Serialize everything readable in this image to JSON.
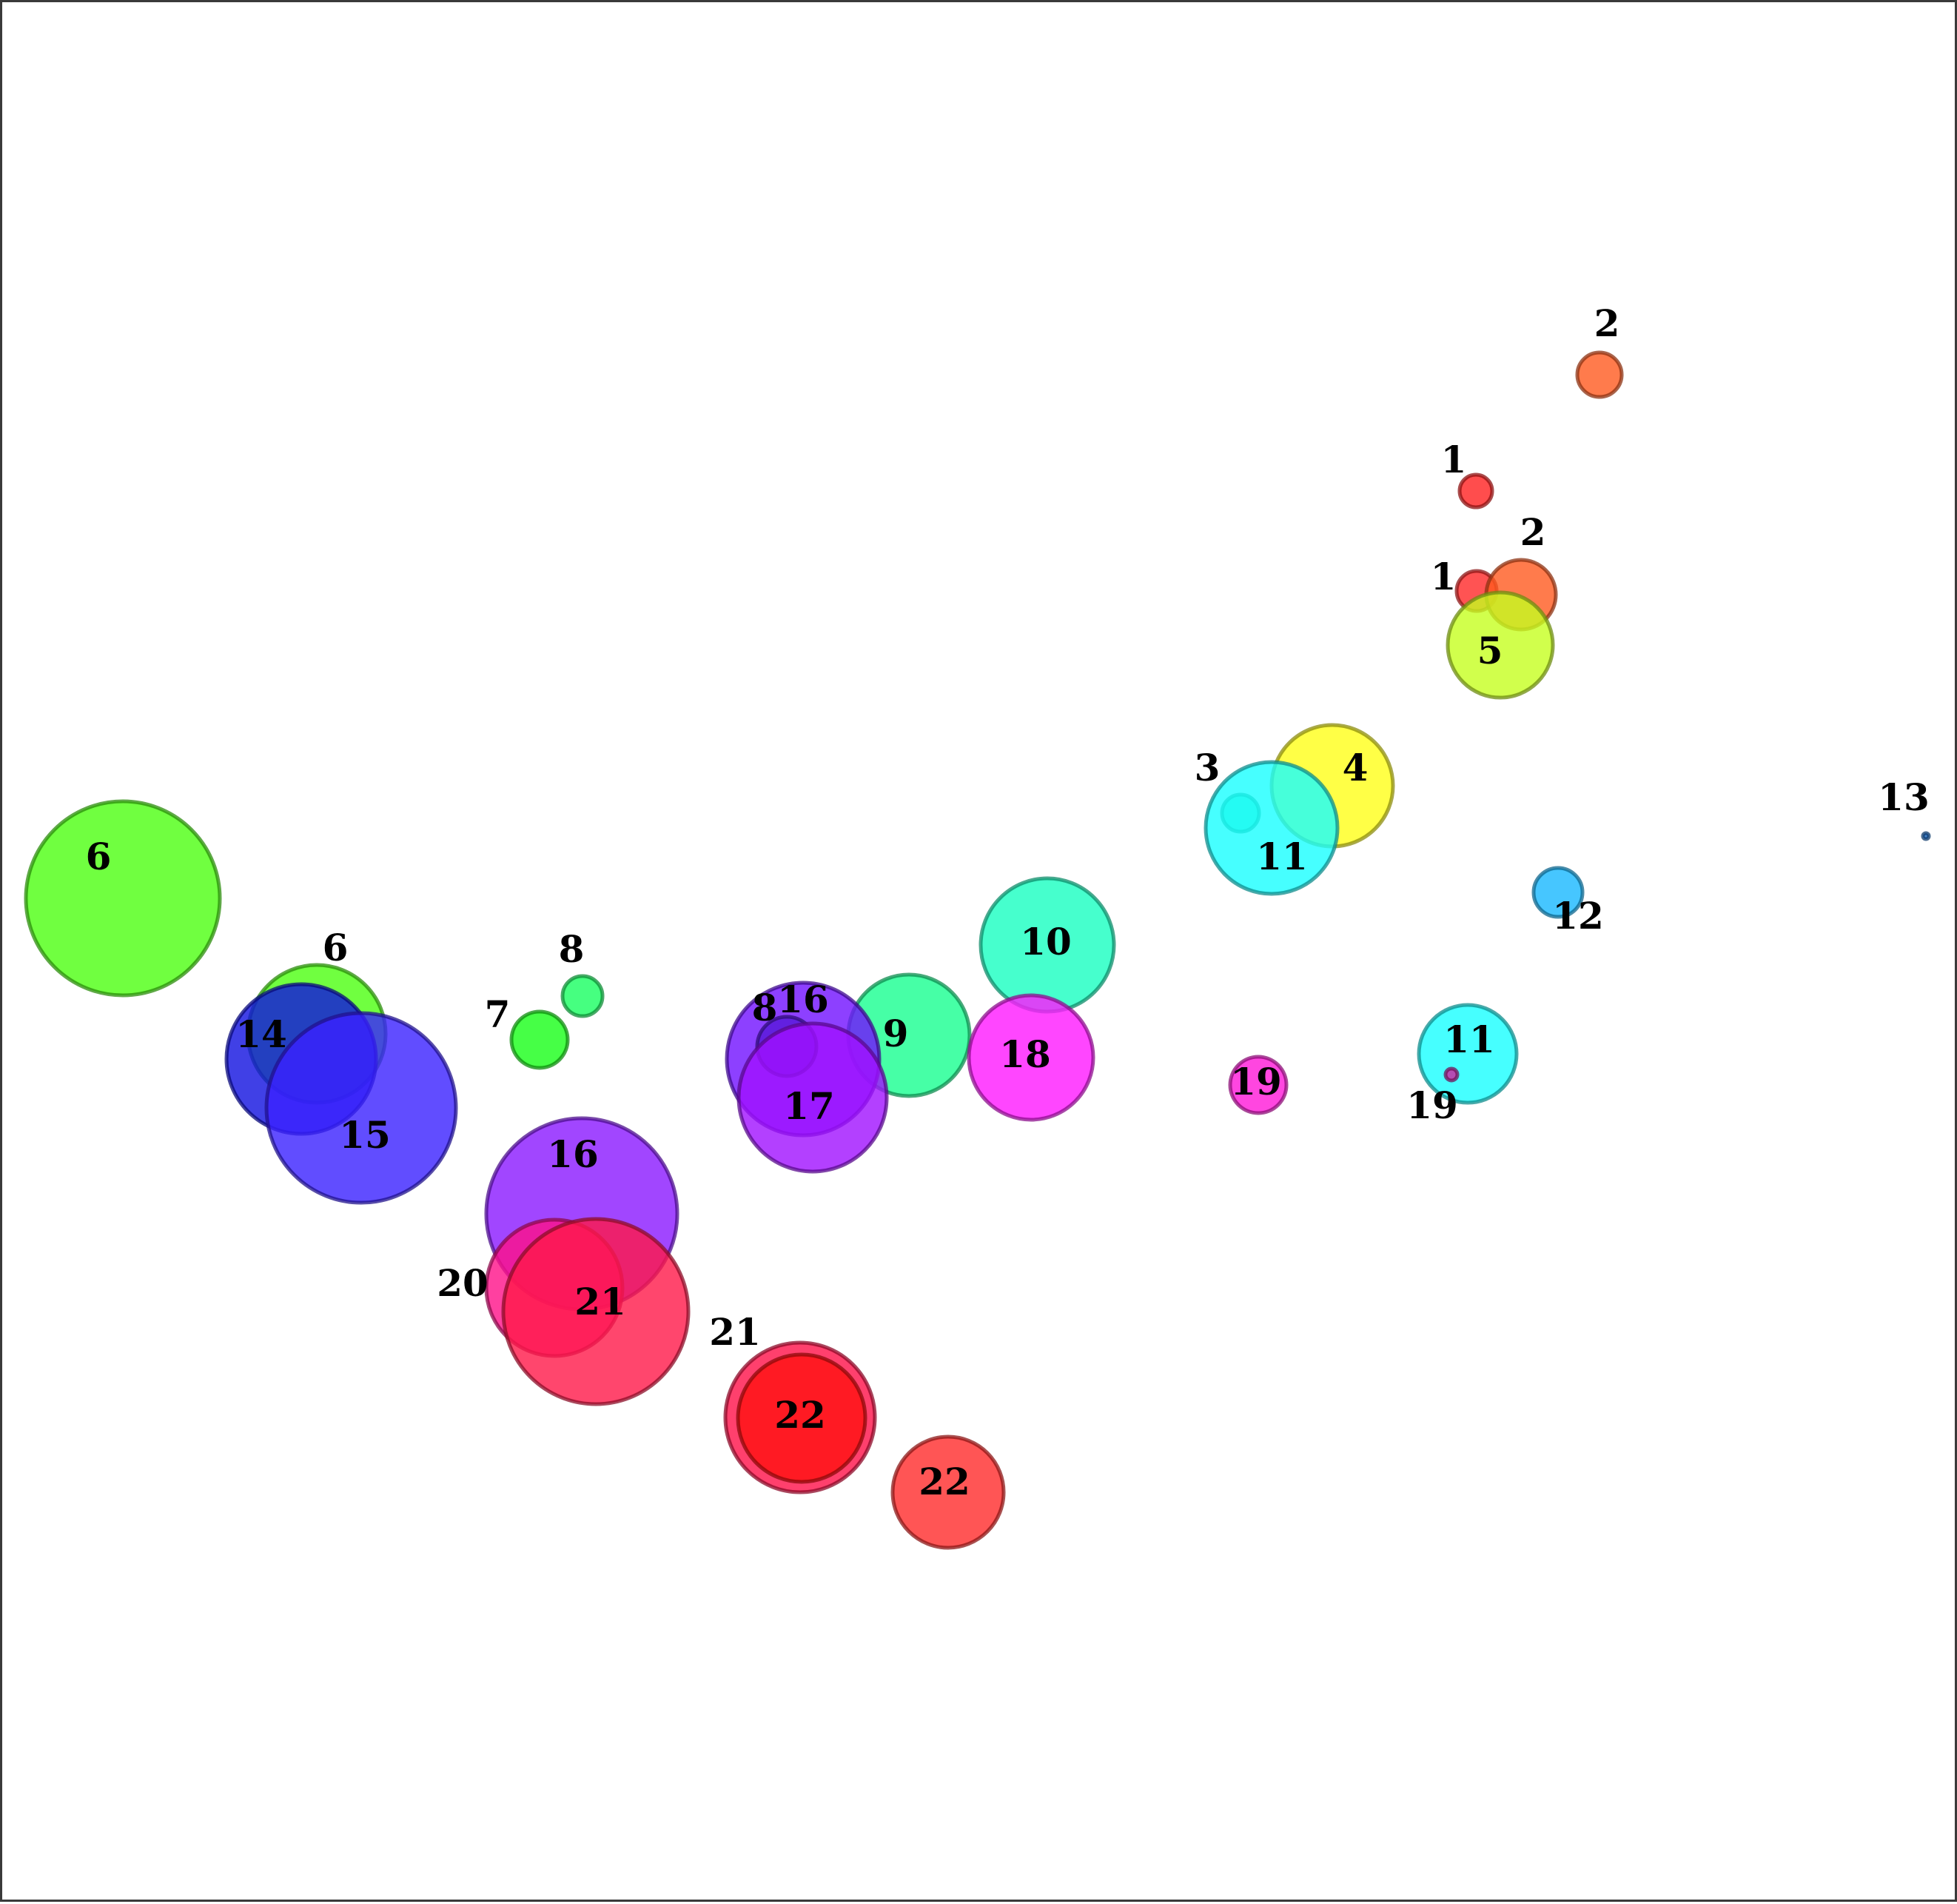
{
  "chart_data": {
    "type": "scatter",
    "title": "",
    "xlabel": "",
    "ylabel": "",
    "xlim": [
      0,
      2644
    ],
    "ylim": [
      0,
      2568
    ],
    "grid": false,
    "axes_visible": false,
    "legend": "none",
    "points": [
      {
        "label": "2",
        "x": 2158,
        "y": 503,
        "size": 30,
        "color": "#ff5a1f",
        "label_dx": 10,
        "label_dy": -65
      },
      {
        "label": "1",
        "x": 1991,
        "y": 660,
        "size": 22,
        "color": "#ff2020",
        "label_dx": -30,
        "label_dy": -38
      },
      {
        "label": "1",
        "x": 1992,
        "y": 795,
        "size": 27,
        "color": "#ff2828",
        "label_dx": -45,
        "label_dy": -15
      },
      {
        "label": "2",
        "x": 2052,
        "y": 800,
        "size": 47,
        "color": "#ff5a1f",
        "label_dx": 16,
        "label_dy": -80
      },
      {
        "label": "5",
        "x": 2024,
        "y": 868,
        "size": 71,
        "color": "#c6ff1f",
        "label_dx": -14,
        "label_dy": 12
      },
      {
        "label": "4",
        "x": 1797,
        "y": 1058,
        "size": 82,
        "color": "#ffff18",
        "label_dx": 31,
        "label_dy": -20
      },
      {
        "label": "3",
        "x": 1673,
        "y": 1095,
        "size": 25,
        "color": "#2ee6b0",
        "label_dx": -45,
        "label_dy": -57
      },
      {
        "label": "11",
        "x": 1715,
        "y": 1115,
        "size": 89,
        "color": "#18ffff",
        "label_dx": 14,
        "label_dy": 43
      },
      {
        "label": "13",
        "x": 2599,
        "y": 1126,
        "size": 4,
        "color": "#1565c0",
        "label_dx": -30,
        "label_dy": -48
      },
      {
        "label": "12",
        "x": 2102,
        "y": 1202,
        "size": 33,
        "color": "#18b8ff",
        "label_dx": 27,
        "label_dy": 36
      },
      {
        "label": "6",
        "x": 163,
        "y": 1210,
        "size": 131,
        "color": "#4cff10",
        "label_dx": -33,
        "label_dy": -52
      },
      {
        "label": "10",
        "x": 1412,
        "y": 1273,
        "size": 90,
        "color": "#18ffc0",
        "label_dx": -2,
        "label_dy": ""
      },
      {
        "label": "6",
        "x": 425,
        "y": 1393,
        "size": 93,
        "color": "#4cff10",
        "label_dx": 25,
        "label_dy": -112
      },
      {
        "label": "8",
        "x": 784,
        "y": 1342,
        "size": 27,
        "color": "#18ff60",
        "label_dx": -15,
        "label_dy": -59
      },
      {
        "label": "7",
        "x": 726,
        "y": 1401,
        "size": 38,
        "color": "#18ff18",
        "label_dx": -57,
        "label_dy": -30
      },
      {
        "label": "9",
        "x": 1225,
        "y": 1395,
        "size": 82,
        "color": "#18ff90",
        "label_dx": -18,
        "label_dy": 2
      },
      {
        "label": "16",
        "x": 1082,
        "y": 1427,
        "size": 103,
        "color": "#7010ff",
        "label_dx": 0,
        "label_dy": -76
      },
      {
        "label": "8",
        "x": 1060,
        "y": 1410,
        "size": 40,
        "color": "#5818d8",
        "label_dx": -30,
        "label_dy": -48
      },
      {
        "label": "14",
        "x": 404,
        "y": 1427,
        "size": 101,
        "color": "#1010e0",
        "label_dx": -54,
        "label_dy": -29
      },
      {
        "label": "18",
        "x": 1390,
        "y": 1425,
        "size": 84,
        "color": "#ff18ff",
        "label_dx": -8,
        "label_dy": ""
      },
      {
        "label": "19",
        "x": 1697,
        "y": 1462,
        "size": 38,
        "color": "#ff18d8",
        "label_dx": -3,
        "label_dy": ""
      },
      {
        "label": "11",
        "x": 1980,
        "y": 1420,
        "size": 66,
        "color": "#18ffff",
        "label_dx": 2,
        "label_dy": -15
      },
      {
        "label": "19",
        "x": 1958,
        "y": 1448,
        "size": 8,
        "color": "#d020a0",
        "label_dx": -26,
        "label_dy": 46
      },
      {
        "label": "17",
        "x": 1095,
        "y": 1479,
        "size": 100,
        "color": "#a010ff",
        "label_dx": -5,
        "label_dy": 16
      },
      {
        "label": "15",
        "x": 485,
        "y": 1493,
        "size": 128,
        "color": "#3a20ff",
        "label_dx": 5,
        "label_dy": 41
      },
      {
        "label": "16",
        "x": 783,
        "y": 1636,
        "size": 129,
        "color": "#8a18ff",
        "label_dx": -12,
        "label_dy": -76
      },
      {
        "label": "20",
        "x": 746,
        "y": 1736,
        "size": 92,
        "color": "#ff1088",
        "label_dx": -124,
        "label_dy": -2
      },
      {
        "label": "21",
        "x": 802,
        "y": 1768,
        "size": 125,
        "color": "#ff1848",
        "label_dx": 6,
        "label_dy": -9
      },
      {
        "label": "21",
        "x": 1078,
        "y": 1911,
        "size": 101,
        "color": "#ff1048",
        "label_dx": -88,
        "label_dy": -111
      },
      {
        "label": "22",
        "x": 1080,
        "y": 1912,
        "size": 86,
        "color": "#ff1010",
        "label_dx": -2,
        "label_dy": ""
      },
      {
        "label": "22",
        "x": 1278,
        "y": 2012,
        "size": 75,
        "color": "#ff2a2a",
        "label_dx": -5,
        "label_dy": -10
      }
    ]
  }
}
